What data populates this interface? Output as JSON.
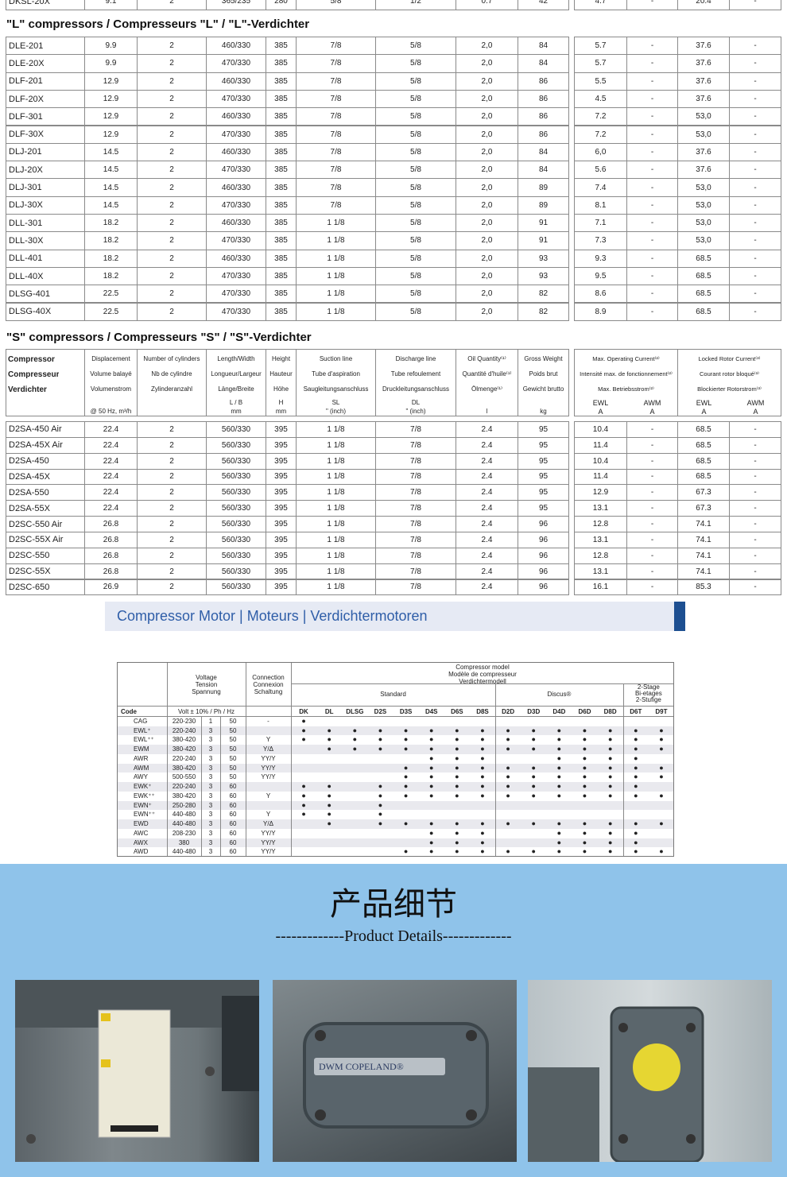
{
  "top_row": [
    "DKSL-20X",
    "9.1",
    "2",
    "365/235",
    "280",
    "5/8",
    "1/2",
    "0.7",
    "42",
    "4.7",
    "-",
    "20.4",
    "-"
  ],
  "l_section": {
    "title": "\"L\" compressors / Compresseurs \"L\" / \"L\"-Verdichter",
    "rows": [
      [
        "DLE-201",
        "9.9",
        "2",
        "460/330",
        "385",
        "7/8",
        "5/8",
        "2,0",
        "84",
        "5.7",
        "-",
        "37.6",
        "-"
      ],
      [
        "DLE-20X",
        "9.9",
        "2",
        "470/330",
        "385",
        "7/8",
        "5/8",
        "2,0",
        "84",
        "5.7",
        "-",
        "37.6",
        "-"
      ],
      [
        "DLF-201",
        "12.9",
        "2",
        "460/330",
        "385",
        "7/8",
        "5/8",
        "2,0",
        "86",
        "5.5",
        "-",
        "37.6",
        "-"
      ],
      [
        "DLF-20X",
        "12.9",
        "2",
        "470/330",
        "385",
        "7/8",
        "5/8",
        "2,0",
        "86",
        "4.5",
        "-",
        "37.6",
        "-"
      ],
      [
        "DLF-301",
        "12.9",
        "2",
        "460/330",
        "385",
        "7/8",
        "5/8",
        "2,0",
        "86",
        "7.2",
        "-",
        "53,0",
        "-"
      ],
      [
        "DLF-30X",
        "12.9",
        "2",
        "470/330",
        "385",
        "7/8",
        "5/8",
        "2,0",
        "86",
        "7.2",
        "-",
        "53,0",
        "-"
      ],
      [
        "DLJ-201",
        "14.5",
        "2",
        "460/330",
        "385",
        "7/8",
        "5/8",
        "2,0",
        "84",
        "6,0",
        "-",
        "37.6",
        "-"
      ],
      [
        "DLJ-20X",
        "14.5",
        "2",
        "470/330",
        "385",
        "7/8",
        "5/8",
        "2,0",
        "84",
        "5.6",
        "-",
        "37.6",
        "-"
      ],
      [
        "DLJ-301",
        "14.5",
        "2",
        "460/330",
        "385",
        "7/8",
        "5/8",
        "2,0",
        "89",
        "7.4",
        "-",
        "53,0",
        "-"
      ],
      [
        "DLJ-30X",
        "14.5",
        "2",
        "470/330",
        "385",
        "7/8",
        "5/8",
        "2,0",
        "89",
        "8.1",
        "-",
        "53,0",
        "-"
      ],
      [
        "DLL-301",
        "18.2",
        "2",
        "460/330",
        "385",
        "1 1/8",
        "5/8",
        "2,0",
        "91",
        "7.1",
        "-",
        "53,0",
        "-"
      ],
      [
        "DLL-30X",
        "18.2",
        "2",
        "470/330",
        "385",
        "1 1/8",
        "5/8",
        "2,0",
        "91",
        "7.3",
        "-",
        "53,0",
        "-"
      ],
      [
        "DLL-401",
        "18.2",
        "2",
        "460/330",
        "385",
        "1 1/8",
        "5/8",
        "2,0",
        "93",
        "9.3",
        "-",
        "68.5",
        "-"
      ],
      [
        "DLL-40X",
        "18.2",
        "2",
        "470/330",
        "385",
        "1 1/8",
        "5/8",
        "2,0",
        "93",
        "9.5",
        "-",
        "68.5",
        "-"
      ],
      [
        "DLSG-401",
        "22.5",
        "2",
        "470/330",
        "385",
        "1 1/8",
        "5/8",
        "2,0",
        "82",
        "8.6",
        "-",
        "68.5",
        "-"
      ],
      [
        "DLSG-40X",
        "22.5",
        "2",
        "470/330",
        "385",
        "1 1/8",
        "5/8",
        "2,0",
        "82",
        "8.9",
        "-",
        "68.5",
        "-"
      ]
    ]
  },
  "s_section": {
    "title": "\"S\" compressors / Compresseurs \"S\" / \"S\"-Verdichter",
    "header": {
      "columns": [
        {
          "lines": [
            "Compressor",
            "Compresseur",
            "Verdichter"
          ]
        },
        {
          "lines": [
            "Displacement",
            "Volume balayé",
            "Volumenstrom"
          ],
          "units": [
            "@ 50 Hz, m³/h"
          ]
        },
        {
          "lines": [
            "Number of cylinders",
            "Nb de cylindre",
            "Zylinderanzahl"
          ]
        },
        {
          "lines": [
            "Length/Width",
            "Longueur/Largeur",
            "Länge/Breite"
          ],
          "units": [
            "L / B",
            "mm"
          ]
        },
        {
          "lines": [
            "Height",
            "Hauteur",
            "Höhe"
          ],
          "units": [
            "H",
            "mm"
          ]
        },
        {
          "lines": [
            "Suction line",
            "Tube d'aspiration",
            "Saugleitungsanschluss"
          ],
          "units": [
            "SL",
            "\" (inch)"
          ]
        },
        {
          "lines": [
            "Discharge line",
            "Tube refoulement",
            "Druckleitungsanschluss"
          ],
          "units": [
            "DL",
            "\" (inch)"
          ]
        },
        {
          "lines": [
            "Oil Quantity⁽¹⁾",
            "Quantité d'huile⁽¹⁾",
            "Ölmenge⁽¹⁾"
          ],
          "units": [
            "l"
          ]
        },
        {
          "lines": [
            "Gross Weight",
            "Poids brut",
            "Gewicht brutto"
          ],
          "units": [
            "kg"
          ]
        }
      ],
      "current_groups": [
        {
          "lines": [
            "Max. Operating Current⁽²⁾",
            "Intensité max. de fonctionnement⁽²⁾",
            "Max. Betriebsstrom⁽²⁾"
          ],
          "sub": [
            [
              "EWL",
              "A"
            ],
            [
              "AWM",
              "A"
            ]
          ]
        },
        {
          "lines": [
            "Locked Rotor Current⁽³⁾",
            "Courant rotor bloqué⁽³⁾",
            "Blockierter Rotorstrom⁽³⁾"
          ],
          "sub": [
            [
              "EWL",
              "A"
            ],
            [
              "AWM",
              "A"
            ]
          ]
        }
      ]
    },
    "rows": [
      [
        "D2SA-450 Air",
        "22.4",
        "2",
        "560/330",
        "395",
        "1 1/8",
        "7/8",
        "2.4",
        "95",
        "10.4",
        "-",
        "68.5",
        "-"
      ],
      [
        "D2SA-45X Air",
        "22.4",
        "2",
        "560/330",
        "395",
        "1 1/8",
        "7/8",
        "2.4",
        "95",
        "11.4",
        "-",
        "68.5",
        "-"
      ],
      [
        "D2SA-450",
        "22.4",
        "2",
        "560/330",
        "395",
        "1 1/8",
        "7/8",
        "2.4",
        "95",
        "10.4",
        "-",
        "68.5",
        "-"
      ],
      [
        "D2SA-45X",
        "22.4",
        "2",
        "560/330",
        "395",
        "1 1/8",
        "7/8",
        "2.4",
        "95",
        "11.4",
        "-",
        "68.5",
        "-"
      ],
      [
        "D2SA-550",
        "22.4",
        "2",
        "560/330",
        "395",
        "1 1/8",
        "7/8",
        "2.4",
        "95",
        "12.9",
        "-",
        "67.3",
        "-"
      ],
      [
        "D2SA-55X",
        "22.4",
        "2",
        "560/330",
        "395",
        "1 1/8",
        "7/8",
        "2.4",
        "95",
        "13.1",
        "-",
        "67.3",
        "-"
      ],
      [
        "D2SC-550 Air",
        "26.8",
        "2",
        "560/330",
        "395",
        "1 1/8",
        "7/8",
        "2.4",
        "96",
        "12.8",
        "-",
        "74.1",
        "-"
      ],
      [
        "D2SC-55X Air",
        "26.8",
        "2",
        "560/330",
        "395",
        "1 1/8",
        "7/8",
        "2.4",
        "96",
        "13.1",
        "-",
        "74.1",
        "-"
      ],
      [
        "D2SC-550",
        "26.8",
        "2",
        "560/330",
        "395",
        "1 1/8",
        "7/8",
        "2.4",
        "96",
        "12.8",
        "-",
        "74.1",
        "-"
      ],
      [
        "D2SC-55X",
        "26.8",
        "2",
        "560/330",
        "395",
        "1 1/8",
        "7/8",
        "2.4",
        "96",
        "13.1",
        "-",
        "74.1",
        "-"
      ],
      [
        "D2SC-650",
        "26.9",
        "2",
        "560/330",
        "395",
        "1 1/8",
        "7/8",
        "2.4",
        "96",
        "16.1",
        "-",
        "85.3",
        "-"
      ]
    ]
  },
  "motor_banner": "Compressor Motor | Moteurs | Verdichtermotoren",
  "motor_table": {
    "code_header": "Code",
    "voltage_header": [
      "Voltage",
      "Tension",
      "Spannung"
    ],
    "voltage_sub": "Volt ± 10% / Ph / Hz",
    "connection_header": [
      "Connection",
      "Connexion",
      "Schaltung"
    ],
    "model_header": [
      "Compressor model",
      "Modèle de compresseur",
      "Verdichtermodell"
    ],
    "groups": [
      {
        "name": [
          "Standard"
        ],
        "models": [
          "DK",
          "DL",
          "DLSG",
          "D2S",
          "D3S",
          "D4S",
          "D6S",
          "D8S"
        ]
      },
      {
        "name": [
          "Discus®"
        ],
        "models": [
          "D2D",
          "D3D",
          "D4D",
          "D6D",
          "D8D"
        ]
      },
      {
        "name": [
          "2-Stage",
          "Bi-etages",
          "2-Stufige"
        ],
        "models": [
          "D6T",
          "D9T"
        ]
      }
    ],
    "rows": [
      {
        "code": "CAG",
        "volt": "220-230",
        "ph": "1",
        "hz": "50",
        "connection": "-",
        "marks": [
          "●",
          null,
          null,
          null,
          null,
          null,
          null,
          null,
          null,
          null,
          null,
          null,
          null,
          null,
          null
        ]
      },
      {
        "code": "EWL⁺",
        "volt": "220-240",
        "ph": "3",
        "hz": "50",
        "connection": null,
        "marks": [
          "●",
          "●",
          "●",
          "●",
          "●",
          "●",
          "●",
          "●",
          "●",
          "●",
          "●",
          "●",
          "●",
          "●",
          "●"
        ]
      },
      {
        "code": "EWL⁺⁺",
        "volt": "380-420",
        "ph": "3",
        "hz": "50",
        "connection": "Y",
        "marks": [
          "●",
          "●",
          "●",
          "●",
          "●",
          "●",
          "●",
          "●",
          "●",
          "●",
          "●",
          "●",
          "●",
          "●",
          "●"
        ]
      },
      {
        "code": "EWM",
        "volt": "380-420",
        "ph": "3",
        "hz": "50",
        "connection": "Y/Δ",
        "marks": [
          null,
          "●",
          "●",
          "●",
          "●",
          "●",
          "●",
          "●",
          "●",
          "●",
          "●",
          "●",
          "●",
          "●",
          "●"
        ]
      },
      {
        "code": "AWR",
        "volt": "220-240",
        "ph": "3",
        "hz": "50",
        "connection": "YY/Y",
        "marks": [
          null,
          null,
          null,
          null,
          null,
          "●",
          "●",
          "●",
          null,
          null,
          "●",
          "●",
          "●",
          "●",
          null
        ]
      },
      {
        "code": "AWM",
        "volt": "380-420",
        "ph": "3",
        "hz": "50",
        "connection": "YY/Y",
        "marks": [
          null,
          null,
          null,
          null,
          "●",
          "●",
          "●",
          "●",
          "●",
          "●",
          "●",
          "●",
          "●",
          "●",
          "●"
        ]
      },
      {
        "code": "AWY",
        "volt": "500-550",
        "ph": "3",
        "hz": "50",
        "connection": "YY/Y",
        "marks": [
          null,
          null,
          null,
          null,
          "●",
          "●",
          "●",
          "●",
          "●",
          "●",
          "●",
          "●",
          "●",
          "●",
          "●"
        ]
      },
      {
        "code": "EWK⁺",
        "volt": "220-240",
        "ph": "3",
        "hz": "60",
        "connection": null,
        "marks": [
          "●",
          "●",
          null,
          "●",
          "●",
          "●",
          "●",
          "●",
          "●",
          "●",
          "●",
          "●",
          "●",
          "●",
          null
        ]
      },
      {
        "code": "EWK⁺⁺",
        "volt": "380-420",
        "ph": "3",
        "hz": "60",
        "connection": "Y",
        "marks": [
          "●",
          "●",
          null,
          "●",
          "●",
          "●",
          "●",
          "●",
          "●",
          "●",
          "●",
          "●",
          "●",
          "●",
          "●"
        ]
      },
      {
        "code": "EWN⁺",
        "volt": "250-280",
        "ph": "3",
        "hz": "60",
        "connection": null,
        "marks": [
          "●",
          "●",
          null,
          "●",
          null,
          null,
          null,
          null,
          null,
          null,
          null,
          null,
          null,
          null,
          null
        ]
      },
      {
        "code": "EWN⁺⁺",
        "volt": "440-480",
        "ph": "3",
        "hz": "60",
        "connection": "Y",
        "marks": [
          "●",
          "●",
          null,
          "●",
          null,
          null,
          null,
          null,
          null,
          null,
          null,
          null,
          null,
          null,
          null
        ]
      },
      {
        "code": "EWD",
        "volt": "440-480",
        "ph": "3",
        "hz": "60",
        "connection": "Y/Δ",
        "marks": [
          null,
          "●",
          null,
          "●",
          "●",
          "●",
          "●",
          "●",
          "●",
          "●",
          "●",
          "●",
          "●",
          "●",
          "●"
        ]
      },
      {
        "code": "AWC",
        "volt": "208-230",
        "ph": "3",
        "hz": "60",
        "connection": "YY/Y",
        "marks": [
          null,
          null,
          null,
          null,
          null,
          "●",
          "●",
          "●",
          null,
          null,
          "●",
          "●",
          "●",
          "●",
          null
        ]
      },
      {
        "code": "AWX",
        "volt": "380",
        "ph": "3",
        "hz": "60",
        "connection": "YY/Y",
        "marks": [
          null,
          null,
          null,
          null,
          null,
          "●",
          "●",
          "●",
          null,
          null,
          "●",
          "●",
          "●",
          "●",
          null
        ]
      },
      {
        "code": "AWD",
        "volt": "440-480",
        "ph": "3",
        "hz": "60",
        "connection": "YY/Y",
        "marks": [
          null,
          null,
          null,
          null,
          "●",
          "●",
          "●",
          "●",
          "●",
          "●",
          "●",
          "●",
          "●",
          "●",
          "●"
        ]
      }
    ]
  },
  "details": {
    "title": "产品细节",
    "subtitle": "-------------Product Details-------------",
    "photo_label": "DWM COPELAND®"
  }
}
